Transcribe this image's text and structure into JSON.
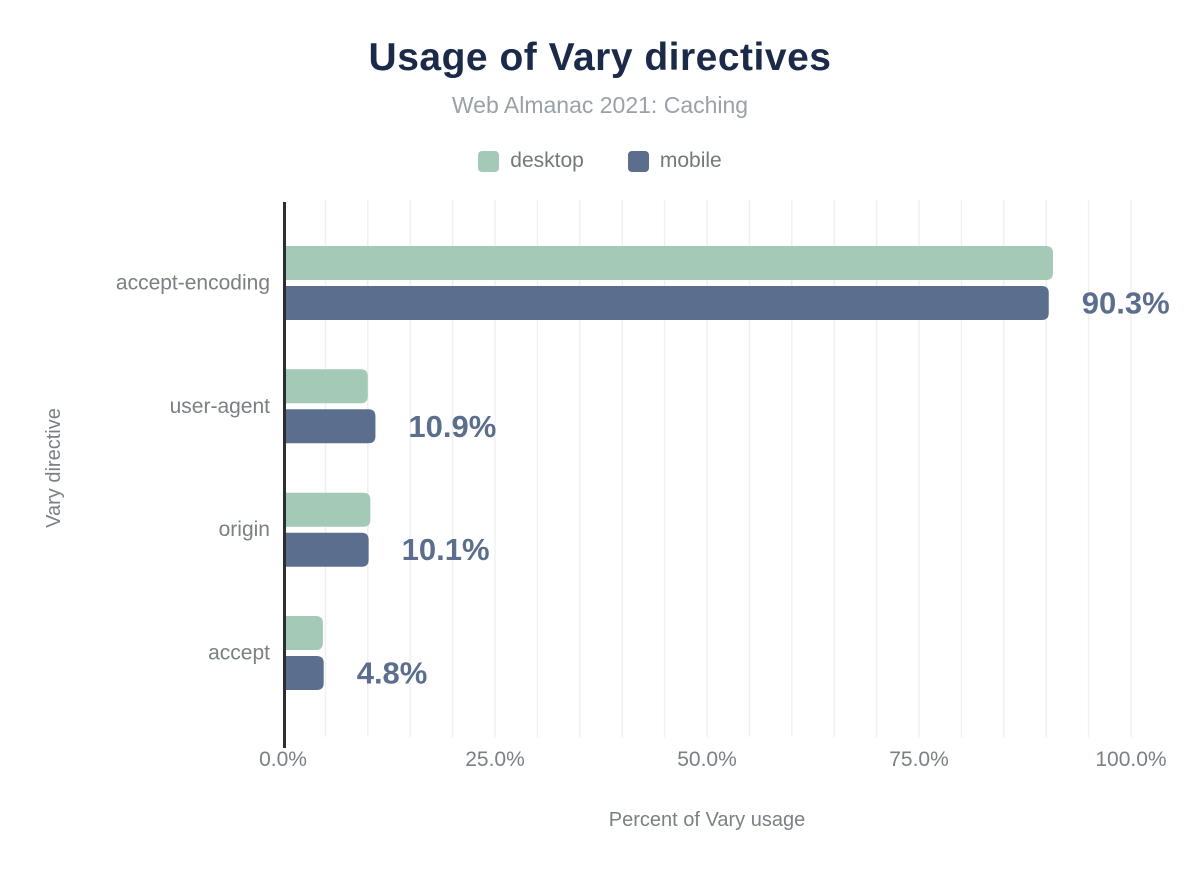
{
  "header": {
    "title": "Usage of Vary directives",
    "subtitle": "Web Almanac 2021: Caching"
  },
  "legend": [
    {
      "label": "desktop",
      "color": "#a4c9b7"
    },
    {
      "label": "mobile",
      "color": "#5b6e8e"
    }
  ],
  "chart_data": {
    "type": "bar",
    "orientation": "horizontal",
    "title": "Usage of Vary directives",
    "subtitle": "Web Almanac 2021: Caching",
    "categories": [
      "accept-encoding",
      "user-agent",
      "origin",
      "accept"
    ],
    "series": [
      {
        "name": "desktop",
        "color": "#a4c9b7",
        "values": [
          90.8,
          10.0,
          10.3,
          4.7
        ]
      },
      {
        "name": "mobile",
        "color": "#5b6e8e",
        "values": [
          90.3,
          10.9,
          10.1,
          4.8
        ]
      }
    ],
    "value_labels": [
      "90.3%",
      "10.9%",
      "10.1%",
      "4.8%"
    ],
    "value_label_series": "mobile",
    "xlabel": "Percent of Vary usage",
    "ylabel": "Vary directive",
    "xlim": [
      0,
      100
    ],
    "xticks": [
      0,
      25,
      50,
      75,
      100
    ],
    "xtick_labels": [
      "0.0%",
      "25.0%",
      "50.0%",
      "75.0%",
      "100.0%"
    ],
    "grid": "vertical minor gridlines every 5%",
    "legend_position": "top"
  },
  "colors": {
    "title": "#1b2a49",
    "subtitle": "#9aa1a7",
    "axis_line": "#2e2e2e",
    "gridline": "#f0f0f0",
    "tick_label": "#7b8084",
    "category_label": "#7b8084",
    "axis_title": "#7b8084",
    "value_label": "#5b6e8e",
    "background": "#ffffff"
  }
}
